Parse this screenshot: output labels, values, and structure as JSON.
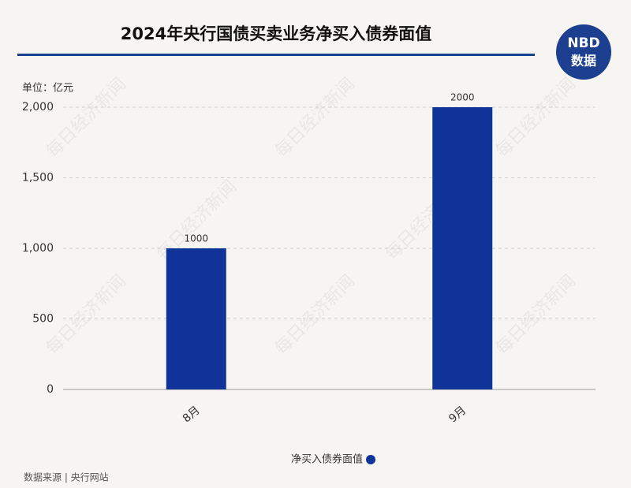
{
  "chart_data": {
    "type": "bar",
    "title": "2024年央行国债买卖业务净买入债券面值",
    "unit": "单位：亿元",
    "logo": {
      "top": "NBD",
      "bottom": "数据"
    },
    "watermark": "每日经济新闻",
    "categories": [
      "8月",
      "9月"
    ],
    "series": [
      {
        "name": "净买入债券面值",
        "color": "#0f3399",
        "values": [
          1000,
          2000
        ]
      }
    ],
    "ylim": [
      0,
      2000
    ],
    "yticks": [
      0,
      500,
      {
        "value": 1000,
        "label": "1,000"
      },
      {
        "value": 1500,
        "label": "1,500"
      },
      {
        "value": 2000,
        "label": "2,000"
      }
    ],
    "grid": true,
    "source": "数据来源 | 央行网站"
  }
}
